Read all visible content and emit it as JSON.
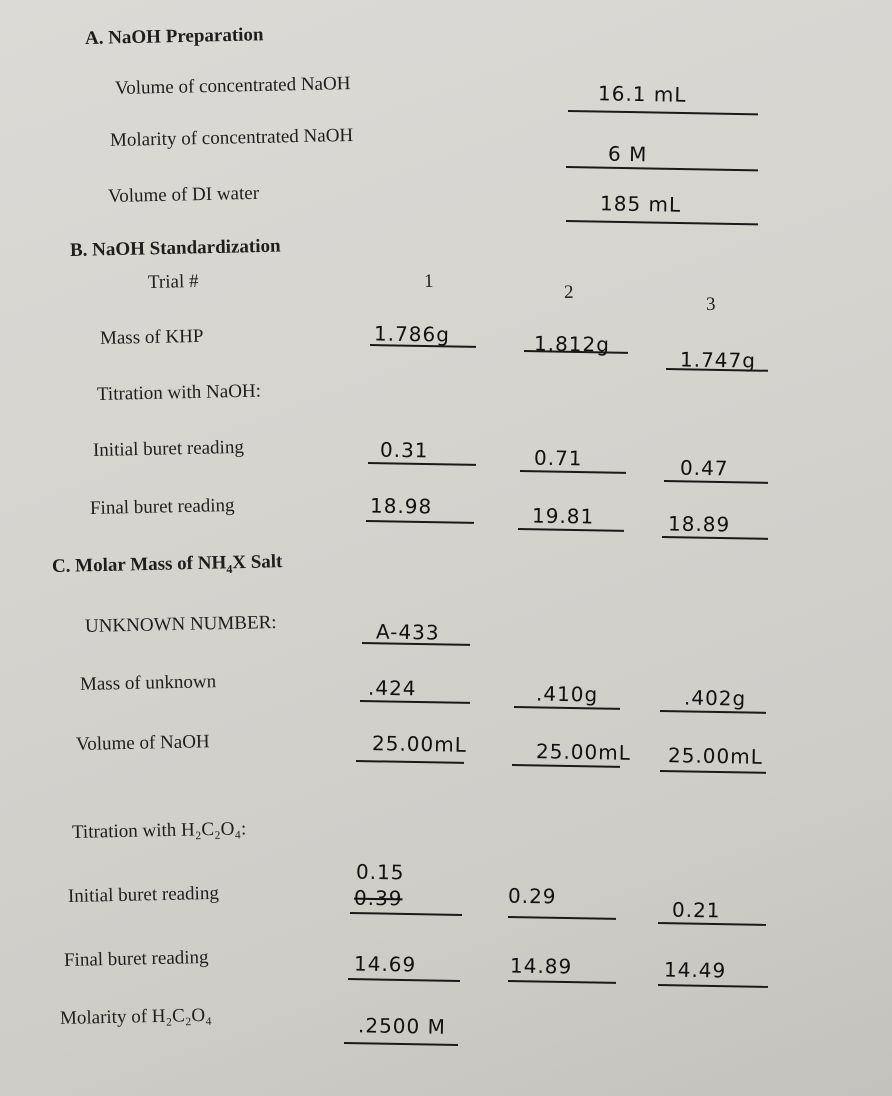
{
  "section_a": {
    "title": "A.  NaOH Preparation",
    "rows": [
      {
        "label": "Volume of concentrated NaOH",
        "value": "16.1 mL"
      },
      {
        "label": "Molarity of concentrated NaOH",
        "value": "6 M"
      },
      {
        "label": "Volume of DI water",
        "value": "185 mL"
      }
    ]
  },
  "section_b": {
    "title": "B.  NaOH Standardization",
    "trial_label": "Trial #",
    "trials": [
      "1",
      "2",
      "3"
    ],
    "mass_khp_label": "Mass of KHP",
    "mass_khp": [
      "1.786g",
      "1.812g",
      "1.747g"
    ],
    "titration_label": "Titration with NaOH:",
    "initial_label": "Initial buret reading",
    "initial": [
      "0.31",
      "0.71",
      "0.47"
    ],
    "final_label": "Final buret reading",
    "final": [
      "18.98",
      "19.81",
      "18.89"
    ]
  },
  "section_c": {
    "title_pre": "C.  Molar Mass of NH",
    "title_sub": "4",
    "title_post": "X Salt",
    "unknown_label": "UNKNOWN NUMBER:",
    "unknown_value": "A-433",
    "mass_label": "Mass of unknown",
    "mass": [
      ".424",
      ".410g",
      ".402g"
    ],
    "volume_label": "Volume of NaOH",
    "volume": [
      "25.00mL",
      "25.00mL",
      "25.00mL"
    ],
    "titration_label": "Titration with H₂C₂O₄:",
    "initial_label": "Initial buret reading",
    "initial_correction": "0.15",
    "initial": [
      "0.39",
      "0.29",
      "0.21"
    ],
    "final_label": "Final buret reading",
    "final": [
      "14.69",
      "14.89",
      "14.49"
    ],
    "molarity_label": "Molarity of H₂C₂O₄",
    "molarity": ".2500 M"
  }
}
